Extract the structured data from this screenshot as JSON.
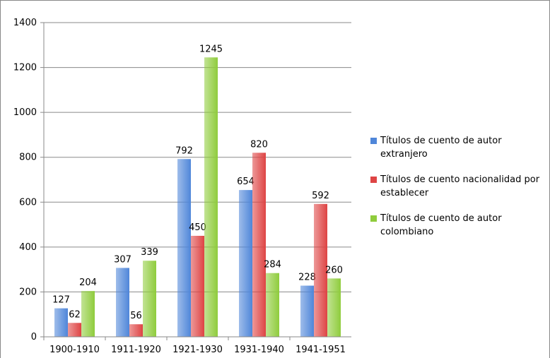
{
  "chart_data": {
    "type": "bar",
    "categories": [
      "1900-1910",
      "1911-1920",
      "1921-1930",
      "1931-1940",
      "1941-1951"
    ],
    "series": [
      {
        "name": "Títulos de cuento de autor extranjero",
        "color": "#4f86d9",
        "values": [
          127,
          307,
          792,
          654,
          228
        ]
      },
      {
        "name": "Títulos de cuento nacionalidad por establecer",
        "color": "#de4444",
        "values": [
          62,
          56,
          450,
          820,
          592
        ]
      },
      {
        "name": "Títulos de cuento de autor colombiano",
        "color": "#8fcc3c",
        "values": [
          204,
          339,
          1245,
          284,
          260
        ]
      }
    ],
    "ylim": [
      0,
      1400
    ],
    "yticks": [
      0,
      200,
      400,
      600,
      800,
      1000,
      1200,
      1400
    ],
    "grid": true,
    "legend": "right"
  }
}
